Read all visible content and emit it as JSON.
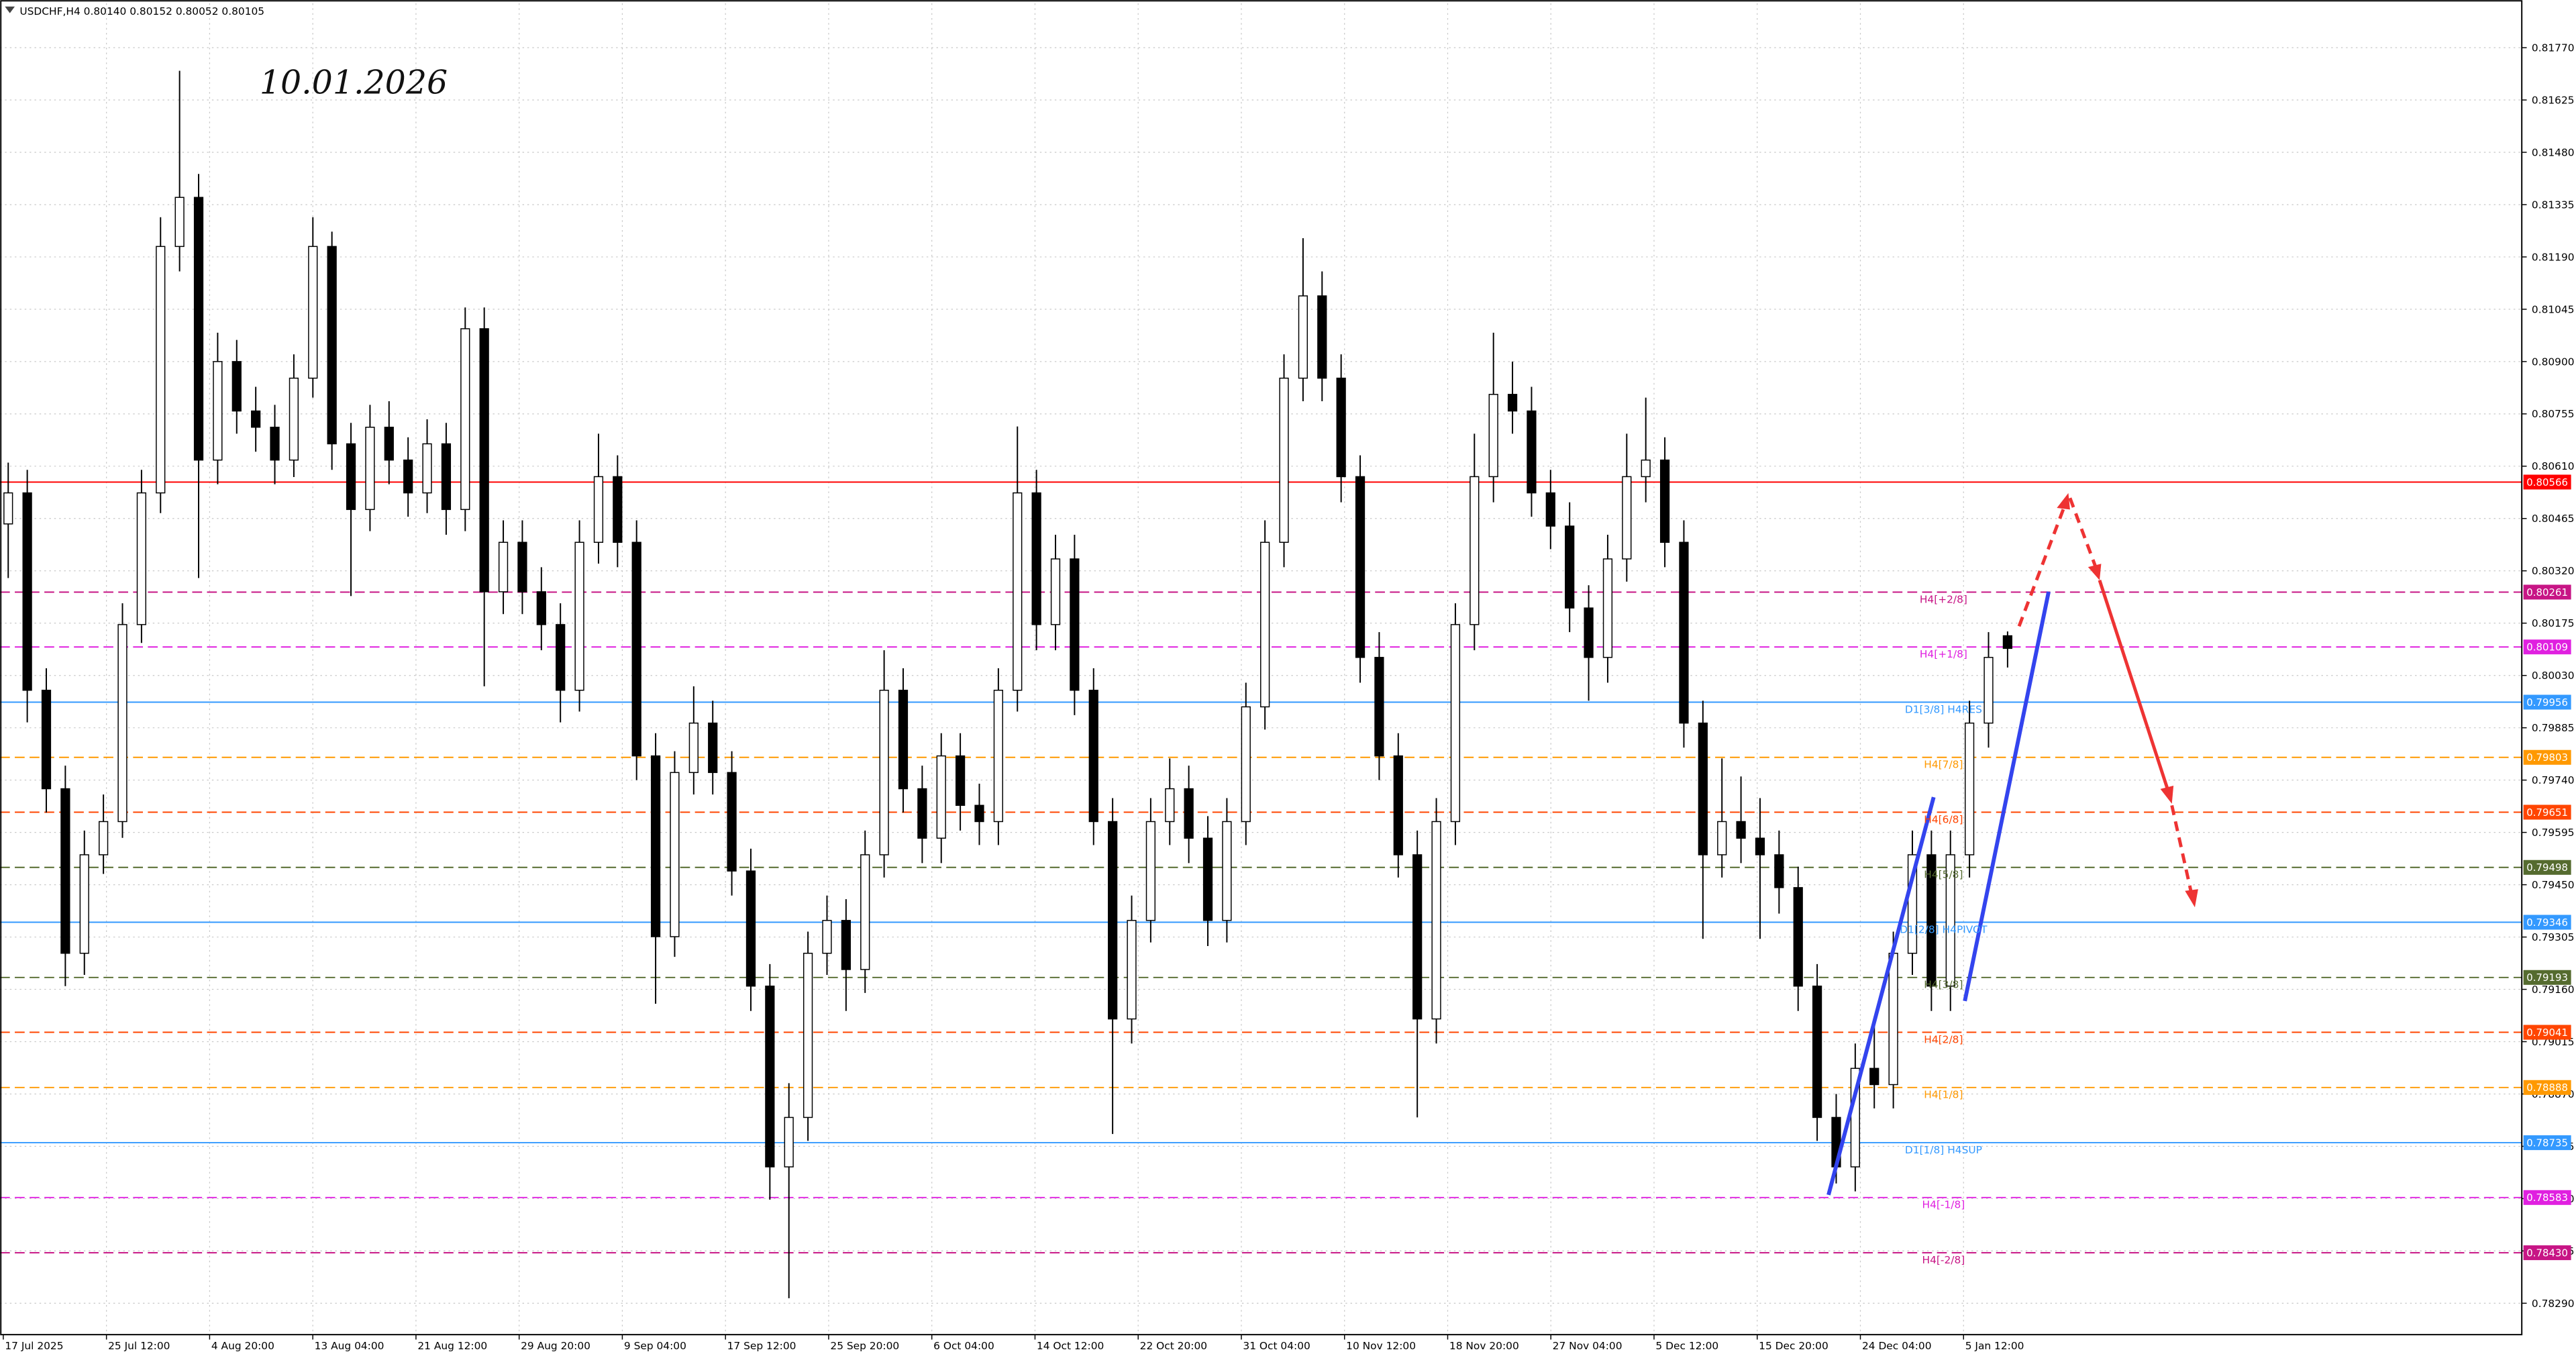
{
  "chart_data": {
    "type": "candlestick",
    "title": "USDCHF,H4  0.80140 0.80152 0.80052 0.80105",
    "annotation": "10.01.2026",
    "ylim": [
      0.78203,
      0.81893
    ],
    "yticks": [
      {
        "value": 0.8177,
        "label": "0.81770"
      },
      0.81625,
      {
        "value": 0.8148,
        "label": "0.81480"
      },
      0.81335,
      {
        "value": 0.8119,
        "label": "0.81190"
      },
      0.81045,
      {
        "value": 0.809,
        "label": "0.80900"
      },
      0.80755,
      {
        "value": 0.8061,
        "label": "0.80610"
      },
      0.80465,
      {
        "value": 0.8032,
        "label": "0.80320"
      },
      0.80175,
      {
        "value": 0.8003,
        "label": "0.80030"
      },
      0.79885,
      {
        "value": 0.7974,
        "label": "0.79740"
      },
      0.79595,
      {
        "value": 0.7945,
        "label": "0.79450"
      },
      0.79305,
      {
        "value": 0.7916,
        "label": "0.79160"
      },
      0.79015,
      {
        "value": 0.7887,
        "label": "0.78870"
      },
      0.78725,
      {
        "value": 0.7858,
        "label": "0.78580"
      },
      0.78435,
      {
        "value": 0.7829,
        "label": "0.78290"
      }
    ],
    "x_labels": [
      "17 Jul 2025",
      "25 Jul 12:00",
      "4 Aug 20:00",
      "13 Aug 04:00",
      "21 Aug 12:00",
      "29 Aug 20:00",
      "9 Sep 04:00",
      "17 Sep 12:00",
      "25 Sep 20:00",
      "6 Oct 04:00",
      "14 Oct 12:00",
      "22 Oct 20:00",
      "31 Oct 04:00",
      "10 Nov 12:00",
      "18 Nov 20:00",
      "27 Nov 04:00",
      "5 Dec 12:00",
      "15 Dec 20:00",
      "24 Dec 04:00",
      "5 Jan 12:00"
    ],
    "grid": true,
    "bull_color": "#ffffff",
    "bear_color": "#000000",
    "candle_outline": "#000000",
    "levels": [
      {
        "value": 0.80566,
        "color": "#ff0000",
        "style": "solid"
      },
      {
        "value": 0.80261,
        "text": "H4[+2/8]",
        "color": "#c71585",
        "style": "dash"
      },
      {
        "value": 0.80109,
        "text": "H4[+1/8]",
        "color": "#e020e0",
        "style": "dash"
      },
      {
        "value": 0.79956,
        "text": "D1[3/8] H4RES",
        "color": "#3399ff",
        "style": "solid"
      },
      {
        "value": 0.79803,
        "text": "H4[7/8]",
        "color": "#ff9900",
        "style": "dash"
      },
      {
        "value": 0.79651,
        "text": "H4[6/8]",
        "color": "#ff4500",
        "style": "dash"
      },
      {
        "value": 0.79498,
        "text": "H4[5/8]",
        "color": "#556b2f",
        "style": "dash"
      },
      {
        "value": 0.79346,
        "text": "D1[2/8] H4PIVOT",
        "color": "#3399ff",
        "style": "solid"
      },
      {
        "value": 0.79193,
        "text": "H4[3/8]",
        "color": "#556b2f",
        "style": "dash"
      },
      {
        "value": 0.79041,
        "text": "H4[2/8]",
        "color": "#ff4500",
        "style": "dash"
      },
      {
        "value": 0.78888,
        "text": "H4[1/8]",
        "color": "#ff9900",
        "style": "dash"
      },
      {
        "value": 0.78735,
        "text": "D1[1/8] H4SUP",
        "color": "#3399ff",
        "style": "solid"
      },
      {
        "value": 0.78583,
        "text": "H4[-1/8]",
        "color": "#e020e0",
        "style": "dash"
      },
      {
        "value": 0.7843,
        "price_label": "0.78430",
        "text": "H4[-2/8]",
        "color": "#c71585",
        "style": "dash"
      }
    ],
    "candles": [
      [
        0.8045,
        0.8062,
        0.803,
        0.80536
      ],
      [
        0.80536,
        0.806,
        0.799,
        0.79989
      ],
      [
        0.79989,
        0.8005,
        0.7965,
        0.79716
      ],
      [
        0.79716,
        0.7978,
        0.79169,
        0.7926
      ],
      [
        0.7926,
        0.796,
        0.792,
        0.79533
      ],
      [
        0.79533,
        0.797,
        0.7948,
        0.79625
      ],
      [
        0.79625,
        0.8023,
        0.7958,
        0.80171
      ],
      [
        0.80171,
        0.806,
        0.8012,
        0.80536
      ],
      [
        0.80536,
        0.813,
        0.8048,
        0.81219
      ],
      [
        0.81219,
        0.81706,
        0.8115,
        0.81355
      ],
      [
        0.81355,
        0.8142,
        0.803,
        0.80627
      ],
      [
        0.80627,
        0.8098,
        0.8056,
        0.809
      ],
      [
        0.809,
        0.8096,
        0.807,
        0.80763
      ],
      [
        0.80763,
        0.8083,
        0.8065,
        0.80718
      ],
      [
        0.80718,
        0.8078,
        0.8056,
        0.80627
      ],
      [
        0.80627,
        0.8092,
        0.8058,
        0.80854
      ],
      [
        0.80854,
        0.813,
        0.808,
        0.81219
      ],
      [
        0.81219,
        0.8126,
        0.806,
        0.80672
      ],
      [
        0.80672,
        0.8073,
        0.8025,
        0.8049
      ],
      [
        0.8049,
        0.8078,
        0.8043,
        0.80718
      ],
      [
        0.80718,
        0.8079,
        0.8056,
        0.80627
      ],
      [
        0.80627,
        0.8069,
        0.8047,
        0.80536
      ],
      [
        0.80536,
        0.8074,
        0.8048,
        0.80672
      ],
      [
        0.80672,
        0.8073,
        0.8042,
        0.8049
      ],
      [
        0.8049,
        0.8105,
        0.8043,
        0.80991
      ],
      [
        0.80991,
        0.8105,
        0.8,
        0.80262
      ],
      [
        0.80262,
        0.8046,
        0.802,
        0.80399
      ],
      [
        0.80399,
        0.8046,
        0.802,
        0.80262
      ],
      [
        0.80262,
        0.8033,
        0.801,
        0.80171
      ],
      [
        0.80171,
        0.8023,
        0.799,
        0.79989
      ],
      [
        0.79989,
        0.8046,
        0.7993,
        0.80399
      ],
      [
        0.80399,
        0.807,
        0.8034,
        0.80581
      ],
      [
        0.80581,
        0.8064,
        0.8033,
        0.80399
      ],
      [
        0.80399,
        0.8046,
        0.7974,
        0.79807
      ],
      [
        0.79807,
        0.7987,
        0.7912,
        0.79306
      ],
      [
        0.79306,
        0.7982,
        0.7925,
        0.79761
      ],
      [
        0.79761,
        0.8,
        0.797,
        0.79898
      ],
      [
        0.79898,
        0.7996,
        0.797,
        0.79761
      ],
      [
        0.79761,
        0.7982,
        0.7942,
        0.79488
      ],
      [
        0.79488,
        0.7955,
        0.791,
        0.79169
      ],
      [
        0.79169,
        0.7923,
        0.78577,
        0.78668
      ],
      [
        0.78668,
        0.789,
        0.78304,
        0.78805
      ],
      [
        0.78805,
        0.7932,
        0.7874,
        0.7926
      ],
      [
        0.7926,
        0.7942,
        0.792,
        0.79351
      ],
      [
        0.79351,
        0.7941,
        0.791,
        0.79215
      ],
      [
        0.79215,
        0.796,
        0.7915,
        0.79533
      ],
      [
        0.79533,
        0.801,
        0.7947,
        0.79989
      ],
      [
        0.79989,
        0.8005,
        0.7965,
        0.79716
      ],
      [
        0.79716,
        0.7978,
        0.7951,
        0.79579
      ],
      [
        0.79579,
        0.7987,
        0.7951,
        0.79807
      ],
      [
        0.79807,
        0.7987,
        0.796,
        0.7967
      ],
      [
        0.7967,
        0.7973,
        0.7956,
        0.79625
      ],
      [
        0.79625,
        0.8005,
        0.7956,
        0.79989
      ],
      [
        0.79989,
        0.8072,
        0.7993,
        0.80536
      ],
      [
        0.80536,
        0.806,
        0.801,
        0.80171
      ],
      [
        0.80171,
        0.8042,
        0.801,
        0.80353
      ],
      [
        0.80353,
        0.8042,
        0.7992,
        0.79989
      ],
      [
        0.79989,
        0.8005,
        0.7956,
        0.79625
      ],
      [
        0.79625,
        0.7969,
        0.78759,
        0.79078
      ],
      [
        0.79078,
        0.7942,
        0.7901,
        0.79351
      ],
      [
        0.79351,
        0.7969,
        0.7929,
        0.79625
      ],
      [
        0.79625,
        0.798,
        0.7956,
        0.79716
      ],
      [
        0.79716,
        0.7978,
        0.7951,
        0.79579
      ],
      [
        0.79579,
        0.7964,
        0.7928,
        0.79351
      ],
      [
        0.79351,
        0.7969,
        0.7929,
        0.79625
      ],
      [
        0.79625,
        0.8001,
        0.7956,
        0.79943
      ],
      [
        0.79943,
        0.8046,
        0.7988,
        0.80399
      ],
      [
        0.80399,
        0.8092,
        0.8033,
        0.80854
      ],
      [
        0.80854,
        0.81242,
        0.8079,
        0.81082
      ],
      [
        0.81082,
        0.8115,
        0.8079,
        0.80854
      ],
      [
        0.80854,
        0.8092,
        0.8051,
        0.80581
      ],
      [
        0.80581,
        0.8064,
        0.8001,
        0.8008
      ],
      [
        0.8008,
        0.8015,
        0.7974,
        0.79807
      ],
      [
        0.79807,
        0.7987,
        0.7947,
        0.79533
      ],
      [
        0.79533,
        0.796,
        0.78805,
        0.79078
      ],
      [
        0.79078,
        0.7969,
        0.7901,
        0.79625
      ],
      [
        0.79625,
        0.8023,
        0.7956,
        0.80171
      ],
      [
        0.80171,
        0.807,
        0.801,
        0.80581
      ],
      [
        0.80581,
        0.8098,
        0.8051,
        0.80809
      ],
      [
        0.80809,
        0.809,
        0.807,
        0.80763
      ],
      [
        0.80763,
        0.8083,
        0.8047,
        0.80536
      ],
      [
        0.80536,
        0.806,
        0.8038,
        0.80444
      ],
      [
        0.80444,
        0.8051,
        0.8015,
        0.80217
      ],
      [
        0.80217,
        0.8028,
        0.7996,
        0.8008
      ],
      [
        0.8008,
        0.8042,
        0.8001,
        0.80353
      ],
      [
        0.80353,
        0.807,
        0.8029,
        0.80581
      ],
      [
        0.80581,
        0.808,
        0.8051,
        0.80627
      ],
      [
        0.80627,
        0.8069,
        0.8033,
        0.80399
      ],
      [
        0.80399,
        0.8046,
        0.7983,
        0.79898
      ],
      [
        0.79898,
        0.7996,
        0.793,
        0.79533
      ],
      [
        0.79533,
        0.798,
        0.7947,
        0.79625
      ],
      [
        0.79625,
        0.7975,
        0.7951,
        0.79579
      ],
      [
        0.79579,
        0.7969,
        0.793,
        0.79533
      ],
      [
        0.79533,
        0.796,
        0.7937,
        0.79442
      ],
      [
        0.79442,
        0.795,
        0.791,
        0.79169
      ],
      [
        0.79169,
        0.7923,
        0.7874,
        0.78805
      ],
      [
        0.78805,
        0.7887,
        0.78622,
        0.78668
      ],
      [
        0.78668,
        0.7901,
        0.786,
        0.78941
      ],
      [
        0.78941,
        0.7908,
        0.7883,
        0.78896
      ],
      [
        0.78896,
        0.7932,
        0.7883,
        0.7926
      ],
      [
        0.7926,
        0.796,
        0.792,
        0.79533
      ],
      [
        0.79533,
        0.796,
        0.791,
        0.79169
      ],
      [
        0.79169,
        0.796,
        0.791,
        0.79533
      ],
      [
        0.79533,
        0.7996,
        0.7947,
        0.79898
      ],
      [
        0.79898,
        0.8015,
        0.7983,
        0.8008
      ],
      [
        0.8014,
        0.80152,
        0.80052,
        0.80105
      ]
    ]
  }
}
